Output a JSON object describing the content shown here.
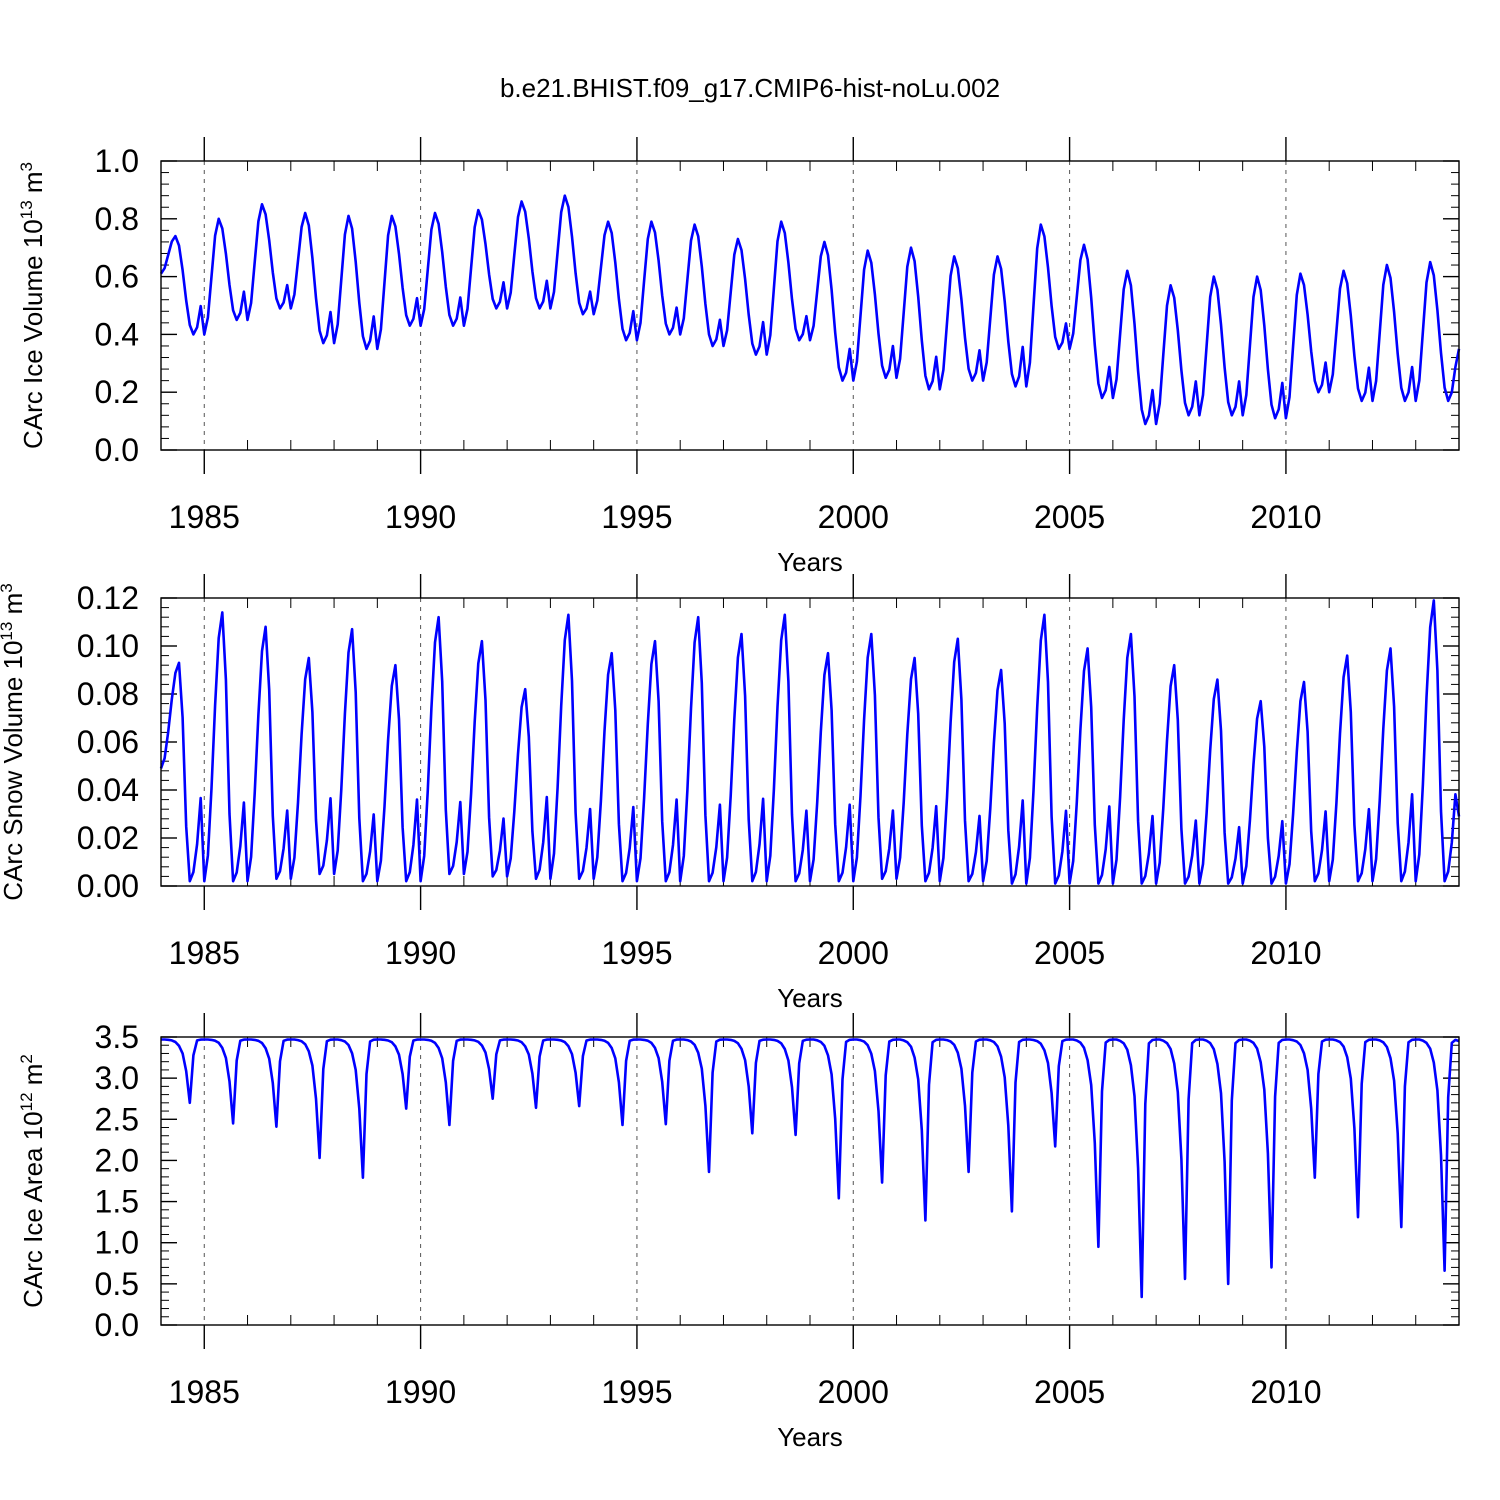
{
  "title": "b.e21.BHIST.f09_g17.CMIP6-hist-noLu.002",
  "colors": {
    "series": "#0000ff",
    "axis": "#000000",
    "grid": "#555555"
  },
  "chart_data": [
    {
      "type": "line",
      "name": "ice-volume",
      "ylabel": "CArc Ice Volume 10",
      "ylabel_exp": "13",
      "ylabel_unit": "m",
      "ylabel_unit_exp": "3",
      "xlabel": "Years",
      "xlim": [
        1984.0,
        2014.0
      ],
      "ylim": [
        0.0,
        1.0
      ],
      "yticks": [
        0.0,
        0.2,
        0.4,
        0.6,
        0.8,
        1.0
      ],
      "ytick_labels": [
        "0.0",
        "0.2",
        "0.4",
        "0.6",
        "0.8",
        "1.0"
      ],
      "xticks": [
        1985,
        1990,
        1995,
        2000,
        2005,
        2010
      ],
      "xtick_labels": [
        "1985",
        "1990",
        "1995",
        "2000",
        "2005",
        "2010"
      ],
      "seasonal": {
        "peak_month": 4,
        "trough_month": 9,
        "x_start": 1984.0,
        "start_value": 0.61
      },
      "annual_max": [
        0.74,
        0.8,
        0.85,
        0.82,
        0.81,
        0.81,
        0.82,
        0.83,
        0.86,
        0.88,
        0.79,
        0.79,
        0.78,
        0.73,
        0.79,
        0.72,
        0.69,
        0.7,
        0.67,
        0.67,
        0.78,
        0.71,
        0.62,
        0.57,
        0.6,
        0.6,
        0.61,
        0.62,
        0.64,
        0.65
      ],
      "annual_min": [
        0.4,
        0.45,
        0.49,
        0.37,
        0.35,
        0.43,
        0.43,
        0.49,
        0.49,
        0.47,
        0.38,
        0.4,
        0.36,
        0.33,
        0.38,
        0.24,
        0.25,
        0.21,
        0.24,
        0.22,
        0.35,
        0.18,
        0.09,
        0.12,
        0.12,
        0.11,
        0.2,
        0.17,
        0.17,
        0.17
      ],
      "end_value": 0.35
    },
    {
      "type": "line",
      "name": "snow-volume",
      "ylabel": "CArc Snow Volume 10",
      "ylabel_exp": "13",
      "ylabel_unit": "m",
      "ylabel_unit_exp": "3",
      "xlabel": "Years",
      "xlim": [
        1984.0,
        2014.0
      ],
      "ylim": [
        0.0,
        0.12
      ],
      "yticks": [
        0.0,
        0.02,
        0.04,
        0.06,
        0.08,
        0.1,
        0.12
      ],
      "ytick_labels": [
        "0.00",
        "0.02",
        "0.04",
        "0.06",
        "0.08",
        "0.10",
        "0.12"
      ],
      "xticks": [
        1985,
        1990,
        1995,
        2000,
        2005,
        2010
      ],
      "xtick_labels": [
        "1985",
        "1990",
        "1995",
        "2000",
        "2005",
        "2010"
      ],
      "seasonal": {
        "peak_month": 5,
        "trough_month": 8,
        "x_start": 1984.0,
        "start_value": 0.049
      },
      "annual_max": [
        0.093,
        0.114,
        0.108,
        0.095,
        0.107,
        0.092,
        0.112,
        0.102,
        0.082,
        0.113,
        0.097,
        0.102,
        0.112,
        0.105,
        0.113,
        0.097,
        0.105,
        0.095,
        0.103,
        0.09,
        0.113,
        0.099,
        0.105,
        0.092,
        0.086,
        0.077,
        0.085,
        0.096,
        0.099,
        0.119
      ],
      "annual_min": [
        0.002,
        0.002,
        0.003,
        0.005,
        0.002,
        0.002,
        0.005,
        0.004,
        0.003,
        0.003,
        0.002,
        0.002,
        0.002,
        0.002,
        0.002,
        0.002,
        0.003,
        0.002,
        0.002,
        0.001,
        0.001,
        0.001,
        0.001,
        0.001,
        0.001,
        0.001,
        0.002,
        0.002,
        0.002,
        0.002
      ],
      "end_value": 0.029
    },
    {
      "type": "line",
      "name": "ice-area",
      "ylabel": "CArc Ice Area 10",
      "ylabel_exp": "12",
      "ylabel_unit": "m",
      "ylabel_unit_exp": "2",
      "xlabel": "Years",
      "xlim": [
        1984.0,
        2014.0
      ],
      "ylim": [
        0.0,
        3.5
      ],
      "yticks": [
        0.0,
        0.5,
        1.0,
        1.5,
        2.0,
        2.5,
        3.0,
        3.5
      ],
      "ytick_labels": [
        "0.0",
        "0.5",
        "1.0",
        "1.5",
        "2.0",
        "2.5",
        "3.0",
        "3.5"
      ],
      "xticks": [
        1985,
        1990,
        1995,
        2000,
        2005,
        2010
      ],
      "xtick_labels": [
        "1985",
        "1990",
        "1995",
        "2000",
        "2005",
        "2010"
      ],
      "max_value": 3.47,
      "annual_min": [
        2.7,
        2.45,
        2.41,
        2.03,
        1.79,
        2.63,
        2.43,
        2.75,
        2.64,
        2.66,
        2.43,
        2.44,
        1.86,
        2.33,
        2.31,
        1.54,
        1.73,
        1.27,
        1.86,
        1.38,
        2.17,
        0.95,
        0.34,
        0.56,
        0.5,
        0.7,
        1.79,
        1.31,
        1.19,
        0.66
      ],
      "end_value": 3.45
    }
  ]
}
